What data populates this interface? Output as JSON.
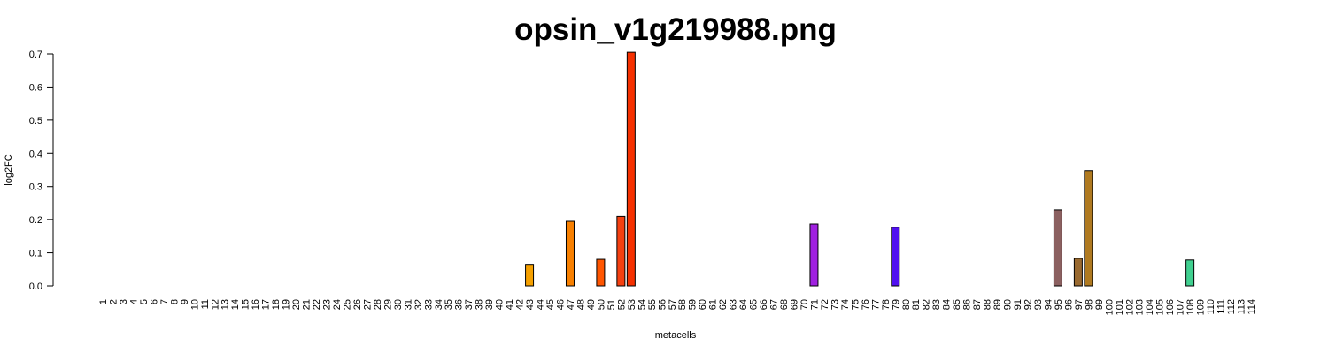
{
  "chart_data": {
    "type": "bar",
    "title": "opsin_v1g219988.png",
    "x_label": "metacells",
    "y_label": "log2FC",
    "categories": [
      1,
      2,
      3,
      4,
      5,
      6,
      7,
      8,
      9,
      10,
      11,
      12,
      13,
      14,
      15,
      16,
      17,
      18,
      19,
      20,
      21,
      22,
      23,
      24,
      25,
      26,
      27,
      28,
      29,
      30,
      31,
      32,
      33,
      34,
      35,
      36,
      37,
      38,
      39,
      40,
      41,
      42,
      43,
      44,
      45,
      46,
      47,
      48,
      49,
      50,
      51,
      52,
      53,
      54,
      55,
      56,
      57,
      58,
      59,
      60,
      61,
      62,
      63,
      64,
      65,
      66,
      67,
      68,
      69,
      70,
      71,
      72,
      73,
      74,
      75,
      76,
      77,
      78,
      79,
      80,
      81,
      82,
      83,
      84,
      85,
      86,
      87,
      88,
      89,
      90,
      91,
      92,
      93,
      94,
      95,
      96,
      97,
      98,
      99,
      100,
      101,
      102,
      103,
      104,
      105,
      106,
      107,
      108,
      109,
      110,
      111,
      112,
      113,
      114
    ],
    "values": [
      0,
      0,
      0,
      0,
      0,
      0,
      0,
      0,
      0,
      0,
      0,
      0,
      0,
      0,
      0,
      0,
      0,
      0,
      0,
      0,
      0,
      0,
      0,
      0,
      0,
      0,
      0,
      0,
      0,
      0,
      0,
      0,
      0,
      0,
      0,
      0,
      0,
      0,
      0,
      0,
      0,
      0,
      0.065,
      0,
      0,
      0,
      0.195,
      0,
      0,
      0.08,
      0,
      0.21,
      0.705,
      0,
      0,
      0,
      0,
      0,
      0,
      0,
      0,
      0,
      0,
      0,
      0,
      0,
      0,
      0,
      0,
      0,
      0.187,
      0,
      0,
      0,
      0,
      0,
      0,
      0,
      0.177,
      0,
      0,
      0,
      0,
      0,
      0,
      0,
      0,
      0,
      0,
      0,
      0,
      0,
      0,
      0,
      0.23,
      0,
      0.083,
      0.348,
      0,
      0,
      0,
      0,
      0,
      0,
      0,
      0,
      0,
      0.078,
      0,
      0,
      0,
      0,
      0,
      0
    ],
    "colors": [
      "#808080",
      "#808080",
      "#808080",
      "#808080",
      "#808080",
      "#808080",
      "#808080",
      "#808080",
      "#808080",
      "#808080",
      "#808080",
      "#808080",
      "#808080",
      "#808080",
      "#808080",
      "#808080",
      "#808080",
      "#808080",
      "#808080",
      "#808080",
      "#808080",
      "#808080",
      "#808080",
      "#808080",
      "#808080",
      "#808080",
      "#808080",
      "#808080",
      "#808080",
      "#808080",
      "#808080",
      "#808080",
      "#808080",
      "#808080",
      "#808080",
      "#808080",
      "#808080",
      "#808080",
      "#808080",
      "#808080",
      "#808080",
      "#808080",
      "#f5a000",
      "#808080",
      "#808080",
      "#808080",
      "#f88000",
      "#808080",
      "#808080",
      "#ff5500",
      "#808080",
      "#f54010",
      "#f53000",
      "#808080",
      "#808080",
      "#808080",
      "#808080",
      "#808080",
      "#808080",
      "#808080",
      "#808080",
      "#808080",
      "#808080",
      "#808080",
      "#808080",
      "#808080",
      "#808080",
      "#808080",
      "#808080",
      "#808080",
      "#a020e0",
      "#808080",
      "#808080",
      "#808080",
      "#808080",
      "#808080",
      "#808080",
      "#808080",
      "#5010f0",
      "#808080",
      "#808080",
      "#808080",
      "#808080",
      "#808080",
      "#808080",
      "#808080",
      "#808080",
      "#808080",
      "#808080",
      "#808080",
      "#808080",
      "#808080",
      "#808080",
      "#808080",
      "#8b6060",
      "#808080",
      "#9a6a30",
      "#b07a20",
      "#808080",
      "#808080",
      "#808080",
      "#808080",
      "#808080",
      "#808080",
      "#808080",
      "#808080",
      "#808080",
      "#40d090",
      "#808080",
      "#808080",
      "#808080",
      "#808080",
      "#808080",
      "#808080"
    ],
    "ylim": [
      0,
      0.7
    ],
    "yticks": [
      {
        "value": 0,
        "label": "0.0"
      },
      0.1,
      0.2,
      0.3,
      0.4,
      0.5,
      0.6,
      0.7
    ]
  }
}
